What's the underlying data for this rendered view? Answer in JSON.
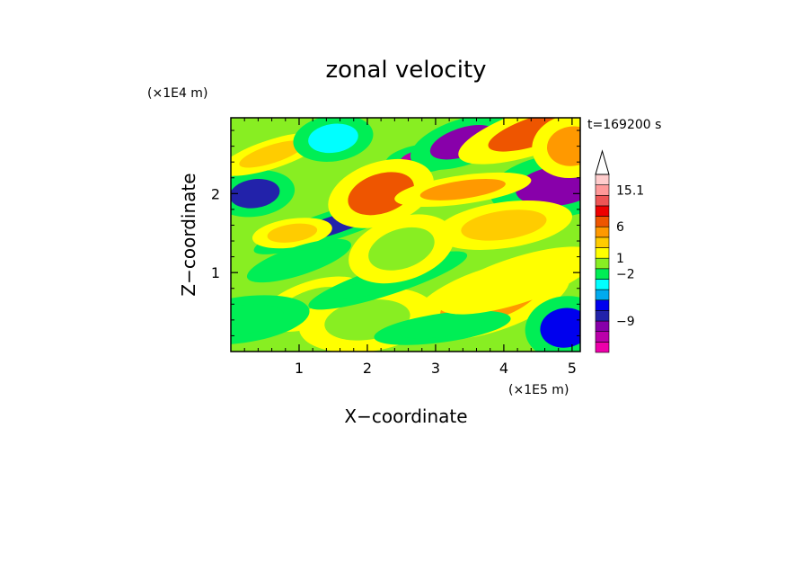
{
  "chart_data": {
    "type": "heatmap",
    "title": "zonal velocity",
    "xlabel": "X−coordinate",
    "ylabel": "Z−coordinate",
    "x_unit": "(×1E5 m)",
    "y_unit": "(×1E4 m)",
    "time_label": "t=169200 s",
    "xlim": [
      0,
      5.12
    ],
    "ylim": [
      0,
      2.96
    ],
    "x_ticks": [
      "1",
      "2",
      "3",
      "4",
      "5"
    ],
    "y_ticks": [
      "1",
      "2"
    ],
    "colorbar": {
      "bin_colors": [
        "#ee00aa",
        "#bb00aa",
        "#8800aa",
        "#2222aa",
        "#0000ee",
        "#00aaee",
        "#00ffff",
        "#00ee55",
        "#88ee22",
        "#ffff00",
        "#ffcc00",
        "#ff9900",
        "#ee5500",
        "#ee0000",
        "#ee5555",
        "#ff9999",
        "#ffcccc"
      ],
      "labels": [
        "15.1",
        "6",
        "1",
        "−2",
        "−9"
      ],
      "extend_max": true
    },
    "features": [
      {
        "x": 2.85,
        "z": 2.45,
        "value": -12
      },
      {
        "x": 3.4,
        "z": 2.65,
        "value": -10
      },
      {
        "x": 4.8,
        "z": 2.1,
        "value": -11
      },
      {
        "x": 1.5,
        "z": 1.6,
        "value": -8
      },
      {
        "x": 0.35,
        "z": 2.0,
        "value": -8
      },
      {
        "x": 2.2,
        "z": 2.0,
        "value": 7
      },
      {
        "x": 3.4,
        "z": 2.05,
        "value": 6
      },
      {
        "x": 4.5,
        "z": 2.8,
        "value": 8
      },
      {
        "x": 5.0,
        "z": 2.6,
        "value": 6
      },
      {
        "x": 0.6,
        "z": 2.5,
        "value": 5
      },
      {
        "x": 4.0,
        "z": 1.6,
        "value": 5
      },
      {
        "x": 3.8,
        "z": 0.65,
        "value": 6
      },
      {
        "x": 0.9,
        "z": 1.5,
        "value": 4
      },
      {
        "x": 1.2,
        "z": 0.6,
        "value": 1
      },
      {
        "x": 2.0,
        "z": 0.4,
        "value": 1
      },
      {
        "x": 2.3,
        "z": 0.9,
        "value": -2
      },
      {
        "x": 1.5,
        "z": 2.7,
        "value": -3
      },
      {
        "x": 2.5,
        "z": 1.3,
        "value": 0
      },
      {
        "x": 3.1,
        "z": 0.3,
        "value": -1
      },
      {
        "x": 4.2,
        "z": 0.9,
        "value": 3
      },
      {
        "x": 4.9,
        "z": 0.3,
        "value": -6
      },
      {
        "x": 1.0,
        "z": 1.15,
        "value": -1
      },
      {
        "x": 0.15,
        "z": 0.4,
        "value": -1
      }
    ]
  }
}
